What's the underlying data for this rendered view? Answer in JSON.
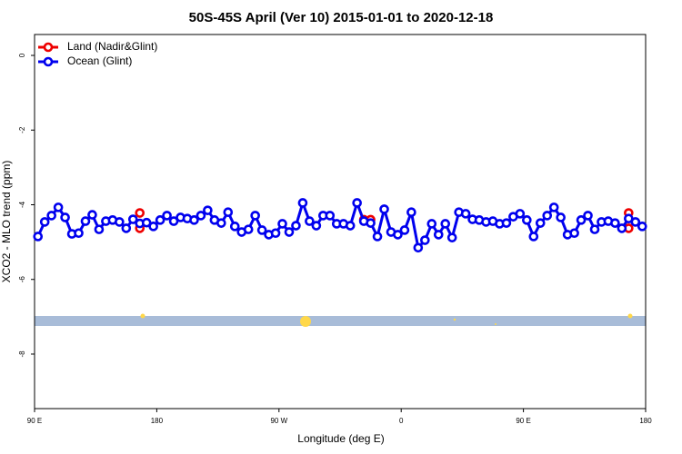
{
  "chart_data": {
    "type": "line",
    "title": "50S-45S April (Ver 10)   2015-01-01 to 2020-12-18",
    "x_label": "Longitude (deg E)",
    "y_label": "XCO2 - MLO trend (ppm)",
    "xlim": [
      90,
      540
    ],
    "ylim": [
      -9.46,
      0.56
    ],
    "xticks": [
      {
        "value": 90,
        "label": "90 E"
      },
      {
        "value": 180,
        "label": "180"
      },
      {
        "value": 270,
        "label": "90 W"
      },
      {
        "value": 360,
        "label": "0"
      },
      {
        "value": 450,
        "label": "90 E"
      },
      {
        "value": 540,
        "label": "180"
      }
    ],
    "yticks": [
      0,
      -2,
      -4,
      -6,
      -8
    ],
    "legend": "top-left",
    "series": [
      {
        "name": "Land (Nadir&Glint)",
        "color": "#ee0000",
        "style": "points",
        "x": [
          167.5,
          167.5,
          332.5,
          337.5,
          527.5,
          527.5
        ],
        "values": [
          -4.22,
          -4.63,
          -4.4,
          -4.4,
          -4.22,
          -4.63
        ]
      },
      {
        "name": "Ocean (Glint)",
        "color": "#0000ee",
        "style": "line-points",
        "x": [
          92.5,
          97.5,
          102.5,
          107.5,
          112.5,
          117.5,
          122.5,
          127.5,
          132.5,
          137.5,
          142.5,
          147.5,
          152.5,
          157.5,
          162.5,
          167.5,
          172.5,
          177.5,
          182.5,
          187.5,
          192.5,
          197.5,
          202.5,
          207.5,
          212.5,
          217.5,
          222.5,
          227.5,
          232.5,
          237.5,
          242.5,
          247.5,
          252.5,
          257.5,
          262.5,
          267.5,
          272.5,
          277.5,
          282.5,
          287.5,
          292.5,
          297.5,
          302.5,
          307.5,
          312.5,
          317.5,
          322.5,
          327.5,
          332.5,
          337.5,
          342.5,
          347.5,
          352.5,
          357.5,
          362.5,
          367.5,
          372.5,
          377.5,
          382.5,
          387.5,
          392.5,
          397.5,
          402.5,
          407.5,
          412.5,
          417.5,
          422.5,
          427.5,
          432.5,
          437.5,
          442.5,
          447.5,
          452.5,
          457.5,
          462.5,
          467.5,
          472.5,
          477.5,
          482.5,
          487.5,
          492.5,
          497.5,
          502.5,
          507.5,
          512.5,
          517.5,
          522.5,
          527.5,
          532.5,
          537.5
        ],
        "values": [
          -4.85,
          -4.46,
          -4.29,
          -4.07,
          -4.34,
          -4.78,
          -4.76,
          -4.44,
          -4.27,
          -4.66,
          -4.44,
          -4.41,
          -4.46,
          -4.63,
          -4.39,
          -4.5,
          -4.48,
          -4.58,
          -4.41,
          -4.29,
          -4.44,
          -4.34,
          -4.37,
          -4.41,
          -4.29,
          -4.15,
          -4.41,
          -4.49,
          -4.2,
          -4.58,
          -4.73,
          -4.66,
          -4.29,
          -4.68,
          -4.8,
          -4.76,
          -4.51,
          -4.73,
          -4.56,
          -3.95,
          -4.44,
          -4.56,
          -4.29,
          -4.29,
          -4.51,
          -4.51,
          -4.56,
          -3.95,
          -4.44,
          -4.49,
          -4.85,
          -4.12,
          -4.73,
          -4.8,
          -4.68,
          -4.2,
          -5.15,
          -4.95,
          -4.51,
          -4.8,
          -4.51,
          -4.88,
          -4.2,
          -4.24,
          -4.39,
          -4.41,
          -4.46,
          -4.44,
          -4.51,
          -4.49,
          -4.32,
          -4.24,
          -4.41,
          -4.85,
          -4.49,
          -4.29,
          -4.07,
          -4.34,
          -4.8,
          -4.76,
          -4.41,
          -4.29,
          -4.66,
          -4.46,
          -4.44,
          -4.49,
          -4.63,
          -4.37,
          -4.46,
          -4.58
        ]
      }
    ]
  }
}
